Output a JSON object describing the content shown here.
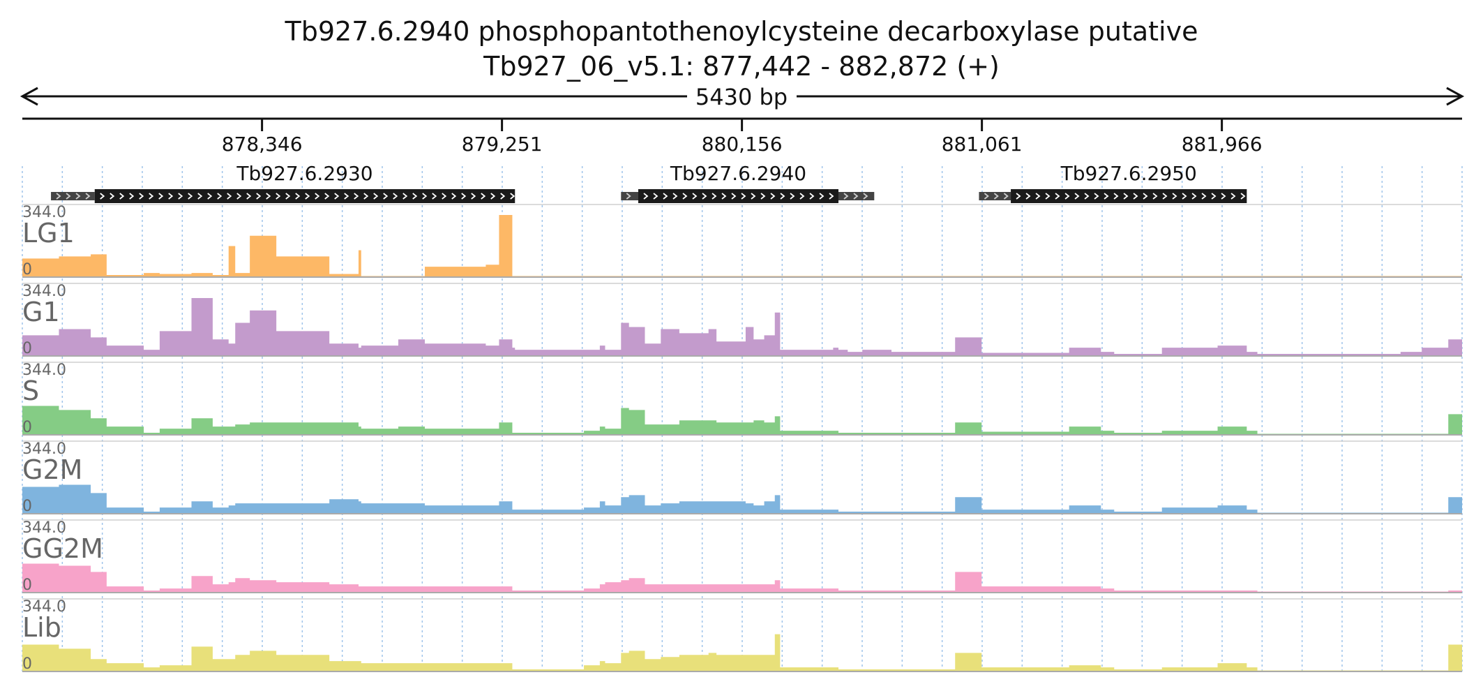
{
  "title_line1": "Tb927.6.2940  phosphopantothenoylcysteine decarboxylase  putative",
  "title_line2": "Tb927_06_v5.1: 877,442 - 882,872 (+)",
  "span_label": "5430 bp",
  "chart_data": {
    "type": "area",
    "xlim": [
      877442,
      882872
    ],
    "ticks": [
      {
        "pos": 878346,
        "label": "878,346"
      },
      {
        "pos": 879251,
        "label": "879,251"
      },
      {
        "pos": 880156,
        "label": "880,156"
      },
      {
        "pos": 881061,
        "label": "881,061"
      },
      {
        "pos": 881966,
        "label": "881,966"
      }
    ],
    "genes": [
      {
        "name": "Tb927.6.2930",
        "utr5": [
          877550,
          877715
        ],
        "cds": [
          877715,
          879300
        ],
        "utr3": null
      },
      {
        "name": "Tb927.6.2940",
        "utr5": [
          879700,
          879765
        ],
        "cds": [
          879765,
          880520
        ],
        "utr3": [
          880520,
          880655
        ]
      },
      {
        "name": "Tb927.6.2950",
        "utr5": [
          881050,
          881170
        ],
        "cds": [
          881170,
          882060
        ],
        "utr3": null
      }
    ],
    "ylim": [
      0,
      344.0
    ],
    "y_max_label": "344.0",
    "y_min_label": "0",
    "profile_x": [
      877442,
      877580,
      877700,
      877760,
      877900,
      877960,
      878080,
      878160,
      878220,
      878245,
      878300,
      878400,
      878600,
      878710,
      878720,
      878860,
      878960,
      879190,
      879240,
      879290,
      879300,
      879400,
      879560,
      879620,
      879640,
      879700,
      879730,
      879790,
      879850,
      879920,
      880030,
      880060,
      880170,
      880200,
      880240,
      880280,
      880300,
      880340,
      880500,
      880520,
      880555,
      880610,
      880720,
      880880,
      880960,
      881060,
      881090,
      881280,
      881390,
      881510,
      881560,
      881740,
      881950,
      882060,
      882100,
      882500,
      882640,
      882720,
      882820,
      882872
    ],
    "series": [
      {
        "name": "LG1",
        "color": "#fdb866",
        "values": [
          90,
          100,
          110,
          10,
          20,
          15,
          20,
          10,
          150,
          20,
          200,
          100,
          15,
          130,
          5,
          5,
          50,
          60,
          300,
          5,
          5,
          5,
          5,
          5,
          5,
          5,
          5,
          5,
          5,
          5,
          5,
          5,
          5,
          5,
          5,
          5,
          5,
          5,
          5,
          5,
          5,
          5,
          5,
          5,
          5,
          5,
          5,
          5,
          5,
          5,
          5,
          5,
          5,
          5,
          5,
          5,
          5,
          5,
          5,
          5
        ]
      },
      {
        "name": "G1",
        "color": "#c39bcc",
        "values": [
          100,
          130,
          90,
          50,
          30,
          120,
          280,
          80,
          60,
          160,
          220,
          120,
          60,
          40,
          50,
          80,
          60,
          50,
          80,
          40,
          30,
          30,
          30,
          50,
          30,
          160,
          140,
          60,
          130,
          110,
          130,
          70,
          140,
          80,
          100,
          210,
          30,
          30,
          40,
          30,
          20,
          30,
          20,
          20,
          90,
          15,
          15,
          15,
          40,
          20,
          10,
          40,
          50,
          20,
          10,
          10,
          20,
          40,
          80,
          20
        ]
      },
      {
        "name": "S",
        "color": "#85cc85",
        "values": [
          140,
          120,
          80,
          40,
          10,
          30,
          80,
          40,
          40,
          50,
          60,
          60,
          60,
          40,
          30,
          40,
          30,
          30,
          60,
          10,
          10,
          10,
          20,
          40,
          30,
          130,
          120,
          50,
          50,
          70,
          70,
          60,
          60,
          70,
          60,
          90,
          20,
          20,
          20,
          10,
          10,
          10,
          10,
          10,
          60,
          15,
          15,
          15,
          40,
          20,
          10,
          20,
          40,
          20,
          5,
          5,
          5,
          5,
          100,
          20
        ]
      },
      {
        "name": "G2M",
        "color": "#7fb4de",
        "values": [
          130,
          140,
          100,
          30,
          10,
          30,
          60,
          30,
          40,
          50,
          50,
          50,
          70,
          60,
          50,
          50,
          40,
          40,
          60,
          20,
          20,
          20,
          30,
          60,
          40,
          80,
          90,
          40,
          50,
          60,
          60,
          60,
          50,
          40,
          60,
          90,
          20,
          20,
          20,
          10,
          10,
          10,
          10,
          10,
          80,
          20,
          20,
          20,
          40,
          20,
          10,
          30,
          40,
          20,
          5,
          5,
          5,
          5,
          80,
          20
        ]
      },
      {
        "name": "GG2M",
        "color": "#f7a3c9",
        "values": [
          140,
          130,
          100,
          30,
          10,
          20,
          80,
          40,
          50,
          70,
          60,
          50,
          40,
          30,
          30,
          30,
          30,
          30,
          30,
          10,
          10,
          10,
          20,
          40,
          50,
          60,
          70,
          40,
          40,
          40,
          40,
          40,
          40,
          40,
          40,
          60,
          20,
          20,
          20,
          10,
          10,
          10,
          10,
          10,
          100,
          30,
          30,
          30,
          30,
          20,
          10,
          10,
          10,
          10,
          5,
          5,
          5,
          5,
          10,
          10
        ]
      },
      {
        "name": "Lib",
        "color": "#e8e07a",
        "values": [
          130,
          110,
          60,
          40,
          20,
          30,
          120,
          60,
          60,
          80,
          100,
          80,
          50,
          50,
          40,
          40,
          40,
          40,
          40,
          10,
          10,
          10,
          30,
          50,
          40,
          90,
          100,
          60,
          70,
          80,
          90,
          80,
          80,
          80,
          80,
          180,
          20,
          20,
          20,
          10,
          10,
          10,
          10,
          10,
          90,
          20,
          20,
          20,
          30,
          20,
          10,
          20,
          40,
          20,
          5,
          5,
          5,
          5,
          130,
          20
        ]
      }
    ]
  }
}
